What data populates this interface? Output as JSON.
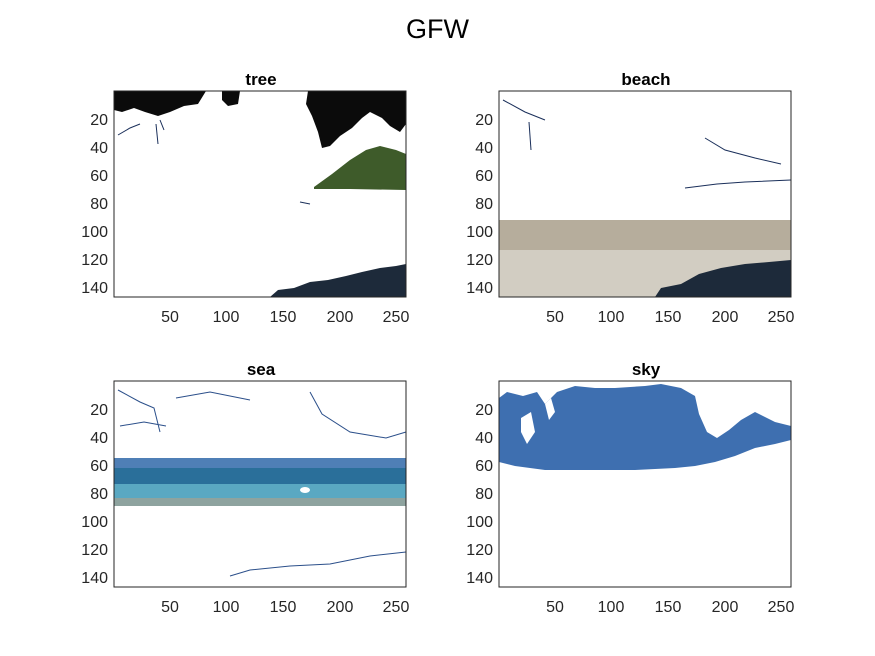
{
  "figure": {
    "title": "GFW"
  },
  "panels": [
    {
      "id": "tree",
      "title": "tree",
      "x_ticks": [
        "50",
        "100",
        "150",
        "200",
        "250"
      ],
      "y_ticks": [
        "20",
        "40",
        "60",
        "80",
        "100",
        "120",
        "140"
      ]
    },
    {
      "id": "beach",
      "title": "beach",
      "x_ticks": [
        "50",
        "100",
        "150",
        "200",
        "250"
      ],
      "y_ticks": [
        "20",
        "40",
        "60",
        "80",
        "100",
        "120",
        "140"
      ]
    },
    {
      "id": "sea",
      "title": "sea",
      "x_ticks": [
        "50",
        "100",
        "150",
        "200",
        "250"
      ],
      "y_ticks": [
        "20",
        "40",
        "60",
        "80",
        "100",
        "120",
        "140"
      ]
    },
    {
      "id": "sky",
      "title": "sky",
      "x_ticks": [
        "50",
        "100",
        "150",
        "200",
        "250"
      ],
      "y_ticks": [
        "20",
        "40",
        "60",
        "80",
        "100",
        "120",
        "140"
      ]
    }
  ],
  "colors": {
    "foliage": "#0b0b0b",
    "hill": "#3e5b2a",
    "beach_sand": "#c8c3b6",
    "beach_wet": "#b6ad9c",
    "sea_deep": "#2a6f9a",
    "sea_shallow": "#5aa8c2",
    "sky": "#3e6fb0",
    "edge": "#2b4f8a"
  }
}
